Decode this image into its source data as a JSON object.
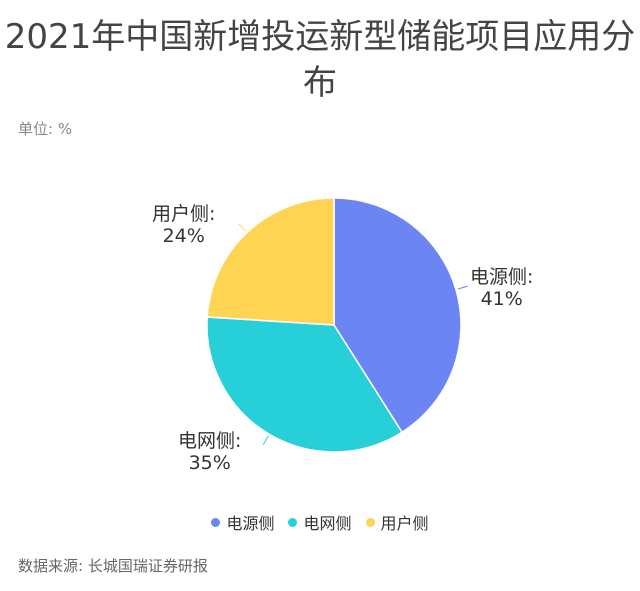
{
  "chart_data": {
    "type": "pie",
    "title": "2021年中国新增投运新型储能项目应用分布",
    "unit_label": "单位: %",
    "source": "数据来源: 长城国瑞证券研报",
    "legend_position": "bottom",
    "slices": [
      {
        "name": "电源侧",
        "value": 41,
        "label": "电源侧:",
        "pct": "41%",
        "color": "#6B86F2"
      },
      {
        "name": "电网侧",
        "value": 35,
        "label": "电网侧:",
        "pct": "35%",
        "color": "#27CFD9"
      },
      {
        "name": "用户侧",
        "value": 24,
        "label": "用户侧:",
        "pct": "24%",
        "color": "#FFD453"
      }
    ]
  }
}
